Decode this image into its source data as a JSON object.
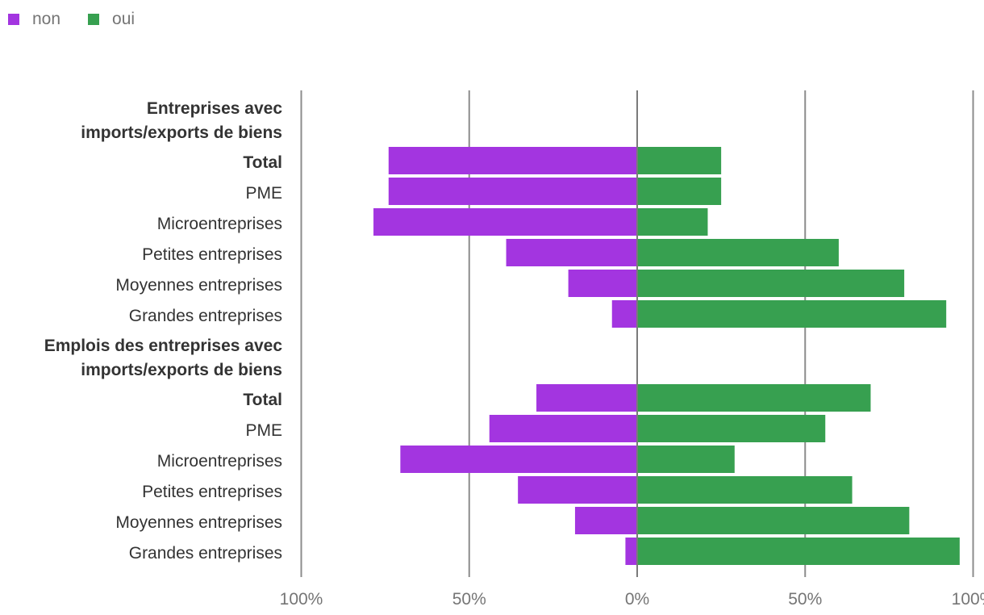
{
  "chart_data": {
    "type": "bar",
    "orientation": "horizontal-diverging",
    "legend": {
      "position": "top-left",
      "entries": [
        {
          "key": "non",
          "label": "non",
          "color": "#a335e0"
        },
        {
          "key": "oui",
          "label": "oui",
          "color": "#37a050"
        }
      ]
    },
    "x_axis": {
      "range": [
        -100,
        100
      ],
      "ticks": [
        {
          "value": -100,
          "label": "100%"
        },
        {
          "value": -50,
          "label": "50%"
        },
        {
          "value": 0,
          "label": "0%"
        },
        {
          "value": 50,
          "label": "50%"
        },
        {
          "value": 100,
          "label": "100%"
        }
      ],
      "grid": true
    },
    "rows": [
      {
        "kind": "header",
        "lines": [
          "Entreprises avec",
          "imports/exports de biens"
        ]
      },
      {
        "kind": "bar",
        "label": "Total",
        "bold": true,
        "non": 74,
        "oui": 25
      },
      {
        "kind": "bar",
        "label": "PME",
        "bold": false,
        "non": 74,
        "oui": 25
      },
      {
        "kind": "bar",
        "label": "Microentreprises",
        "bold": false,
        "non": 78.5,
        "oui": 21
      },
      {
        "kind": "bar",
        "label": "Petites entreprises",
        "bold": false,
        "non": 39,
        "oui": 60
      },
      {
        "kind": "bar",
        "label": "Moyennes entreprises",
        "bold": false,
        "non": 20.5,
        "oui": 79.5
      },
      {
        "kind": "bar",
        "label": "Grandes entreprises",
        "bold": false,
        "non": 7.5,
        "oui": 92
      },
      {
        "kind": "header",
        "lines": [
          "Emplois des entreprises avec",
          "imports/exports de biens"
        ]
      },
      {
        "kind": "bar",
        "label": "Total",
        "bold": true,
        "non": 30,
        "oui": 69.5
      },
      {
        "kind": "bar",
        "label": "PME",
        "bold": false,
        "non": 44,
        "oui": 56
      },
      {
        "kind": "bar",
        "label": "Microentreprises",
        "bold": false,
        "non": 70.5,
        "oui": 29
      },
      {
        "kind": "bar",
        "label": "Petites entreprises",
        "bold": false,
        "non": 35.5,
        "oui": 64
      },
      {
        "kind": "bar",
        "label": "Moyennes entreprises",
        "bold": false,
        "non": 18.5,
        "oui": 81
      },
      {
        "kind": "bar",
        "label": "Grandes entreprises",
        "bold": false,
        "non": 3.5,
        "oui": 96
      }
    ]
  }
}
